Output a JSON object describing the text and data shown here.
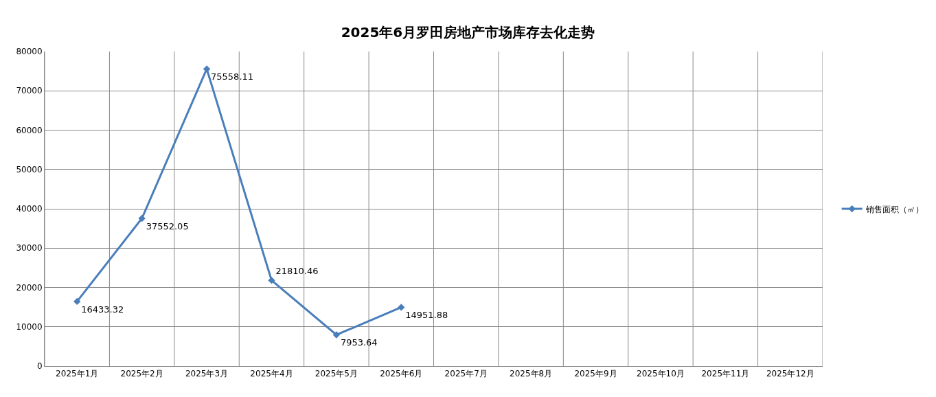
{
  "chart_data": {
    "type": "line",
    "title": "2025年6月罗田房地产市场库存去化走势",
    "categories": [
      "2025年1月",
      "2025年2月",
      "2025年3月",
      "2025年4月",
      "2025年5月",
      "2025年6月",
      "2025年7月",
      "2025年8月",
      "2025年9月",
      "2025年10月",
      "2025年11月",
      "2025年12月"
    ],
    "series": [
      {
        "name": "销售面积（㎡）",
        "color": "#4a7ebb",
        "values": [
          16433.32,
          37552.05,
          75558.11,
          21810.46,
          7953.64,
          14951.88,
          null,
          null,
          null,
          null,
          null,
          null
        ]
      }
    ],
    "ylim": [
      0,
      80000
    ],
    "yticks": [
      0,
      10000,
      20000,
      30000,
      40000,
      50000,
      60000,
      70000,
      80000
    ],
    "grid": true,
    "legend": "right",
    "marker": "diamond",
    "line_style": "solid",
    "data_labels": true
  }
}
